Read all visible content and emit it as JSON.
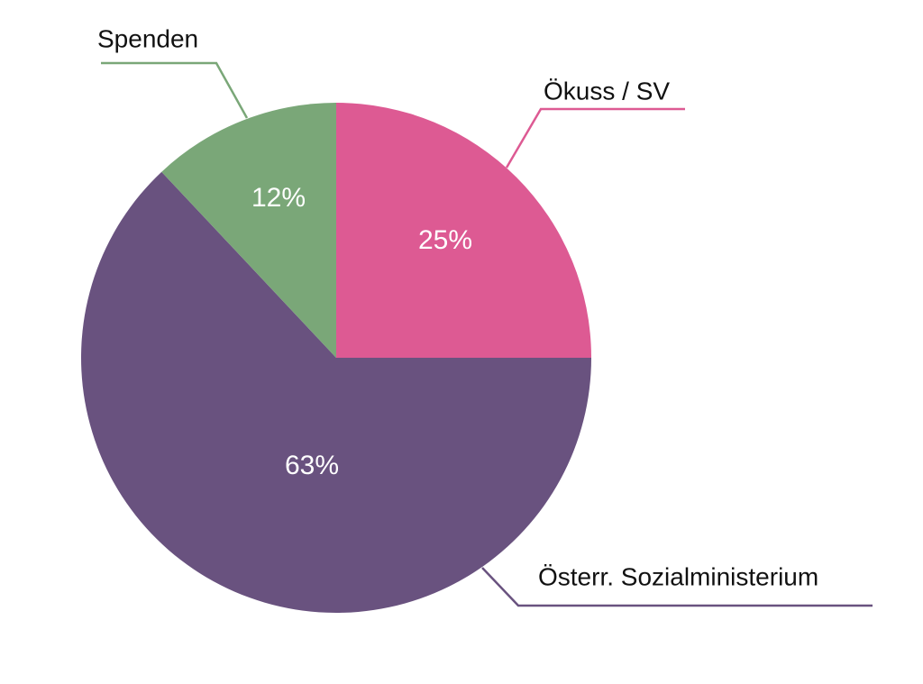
{
  "chart_data": {
    "type": "pie",
    "title": "",
    "slices": [
      {
        "label": "Ökuss / SV",
        "value": 25,
        "value_label": "25%",
        "color": "#dd5a93"
      },
      {
        "label": "Österr. Sozialministerium",
        "value": 63,
        "value_label": "63%",
        "color": "#69527f"
      },
      {
        "label": "Spenden",
        "value": 12,
        "value_label": "12%",
        "color": "#7aa778"
      }
    ],
    "start_angle": "12 o'clock",
    "direction": "clockwise"
  }
}
